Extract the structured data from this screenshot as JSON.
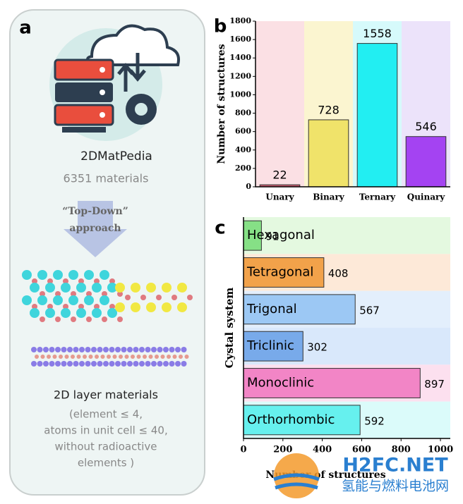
{
  "panel_a": {
    "label": "a",
    "name": "2DMatPedia",
    "count": "6351  materials",
    "approach_1": "“Top-Down”",
    "approach_2": "approach",
    "result_title": "2D layer materials",
    "criteria": [
      "(element ≤ 4,",
      "atoms in unit cell ≤ 40,",
      "without radioactive",
      "elements )"
    ]
  },
  "watermark": {
    "site": "H2FC.NET",
    "name": "氢能与燃料电池网"
  },
  "chart_data": [
    {
      "type": "bar",
      "panel_label": "b",
      "ylabel": "Number of structures",
      "categories": [
        "Unary",
        "Binary",
        "Ternary",
        "Quinary"
      ],
      "values": [
        22,
        728,
        1558,
        546
      ],
      "colors": [
        "#c85a6e",
        "#f0e36a",
        "#22eef2",
        "#a443f2"
      ],
      "band_colors": [
        "#fbe0e4",
        "#fbf5d0",
        "#d6fafb",
        "#ece3fa"
      ],
      "ylim": [
        0,
        1800
      ],
      "yticks": [
        0,
        200,
        400,
        600,
        800,
        1000,
        1200,
        1400,
        1600,
        1800
      ]
    },
    {
      "type": "barh",
      "panel_label": "c",
      "xlabel": "Number of structures",
      "ylabel": "Cystal system",
      "categories": [
        "Hexagonal",
        "Tetragonal",
        "Trigonal",
        "Triclinic",
        "Monoclinic",
        "Orthorhombic"
      ],
      "values": [
        91,
        408,
        567,
        302,
        897,
        592
      ],
      "colors": [
        "#86e086",
        "#f2a24a",
        "#9cc8f4",
        "#78aaea",
        "#f285c6",
        "#66f0ee"
      ],
      "band_colors": [
        "#e4f9e0",
        "#fde9d8",
        "#e3effc",
        "#d9e8fb",
        "#fce0ef",
        "#dbfbfa"
      ],
      "xlim": [
        0,
        1050
      ],
      "xticks": [
        0,
        200,
        400,
        600,
        800,
        1000
      ]
    }
  ]
}
